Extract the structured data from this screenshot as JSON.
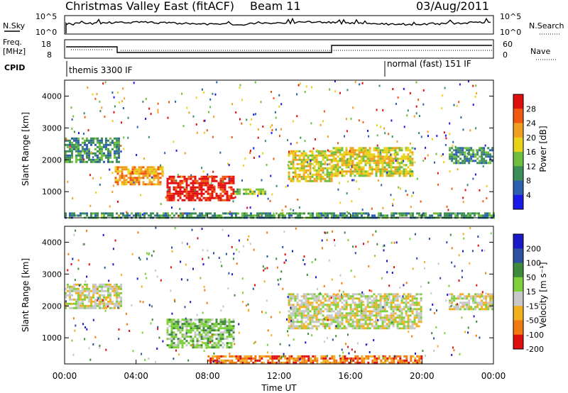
{
  "title": "Christmas Valley East (fitACF)",
  "beam": "Beam 11",
  "date": "03/Aug/2011",
  "top_panels": {
    "nsky_label": "N.Sky",
    "nsky_ticks": [
      "10^5",
      "10^0"
    ],
    "nsearch_label": "N.Search",
    "freq_label_1": "Freq.",
    "freq_label_2": "[MHz]",
    "freq_ticks": [
      "18",
      "8"
    ],
    "nave_ticks": [
      "60",
      "0"
    ],
    "nave_label": "Nave",
    "cpid_label": "CPID",
    "cpid_1": "themis 3300 IF",
    "cpid_2": "normal (fast) 151 IF"
  },
  "colors": {
    "power": [
      "#1a1ae6",
      "#2f5fb0",
      "#3d8f5a",
      "#6fbf3f",
      "#e8d21a",
      "#f0a020",
      "#f05a10",
      "#e01010"
    ],
    "velocity": [
      "#1a1ac8",
      "#2f4fa0",
      "#3d8a3d",
      "#7ed03a",
      "#c8c8c8",
      "#f0b020",
      "#f07a10",
      "#e01010"
    ]
  },
  "chart_data": [
    {
      "type": "heatmap",
      "panel": "power",
      "ylabel": "Slant Range [km]",
      "ylim": [
        180,
        4500
      ],
      "yticks": [
        "1000",
        "2000",
        "3000",
        "4000"
      ],
      "xlim": [
        "00:00",
        "24:00"
      ],
      "colorbar": {
        "label": "Power [dB]",
        "ticks": [
          "4",
          "8",
          "12",
          "16",
          "20",
          "24",
          "28"
        ]
      },
      "regions": [
        {
          "t0": 0.0,
          "t1": 3.0,
          "r0": 1900,
          "r1": 2700,
          "level": 2
        },
        {
          "t0": 2.8,
          "t1": 5.5,
          "r0": 1200,
          "r1": 1800,
          "level": 5
        },
        {
          "t0": 5.7,
          "t1": 9.5,
          "r0": 700,
          "r1": 1500,
          "level": 7
        },
        {
          "t0": 9.5,
          "t1": 11.2,
          "r0": 950,
          "r1": 1100,
          "level": 3
        },
        {
          "t0": 12.5,
          "t1": 15.0,
          "r0": 1300,
          "r1": 2300,
          "level": 4
        },
        {
          "t0": 15.0,
          "t1": 19.5,
          "r0": 1500,
          "r1": 2400,
          "level": 4
        },
        {
          "t0": 21.5,
          "t1": 24.0,
          "r0": 1900,
          "r1": 2400,
          "level": 2
        },
        {
          "t0": 0.0,
          "t1": 24.0,
          "r0": 200,
          "r1": 350,
          "level": 2
        }
      ]
    },
    {
      "type": "heatmap",
      "panel": "velocity",
      "ylabel": "Slant Range [km]",
      "ylim": [
        180,
        4500
      ],
      "yticks": [
        "1000",
        "2000",
        "3000",
        "4000"
      ],
      "xlabel": "Time UT",
      "xticks": [
        "00:00",
        "04:00",
        "08:00",
        "12:00",
        "16:00",
        "20:00",
        "00:00"
      ],
      "colorbar": {
        "label": "Velocity [m s⁻¹]",
        "ticks": [
          "200",
          "100",
          "50",
          "15",
          "-15",
          "-50",
          "-100",
          "-200"
        ]
      },
      "regions": [
        {
          "t0": 0.0,
          "t1": 3.2,
          "r0": 1900,
          "r1": 2700,
          "bin": 4
        },
        {
          "t0": 5.7,
          "t1": 9.5,
          "r0": 700,
          "r1": 1600,
          "bin": 3
        },
        {
          "t0": 12.5,
          "t1": 20.0,
          "r0": 1300,
          "r1": 2400,
          "bin": 4
        },
        {
          "t0": 8.0,
          "t1": 20.0,
          "r0": 200,
          "r1": 450,
          "bin": 6
        },
        {
          "t0": 21.5,
          "t1": 24.0,
          "r0": 1900,
          "r1": 2400,
          "bin": 4
        }
      ]
    }
  ]
}
